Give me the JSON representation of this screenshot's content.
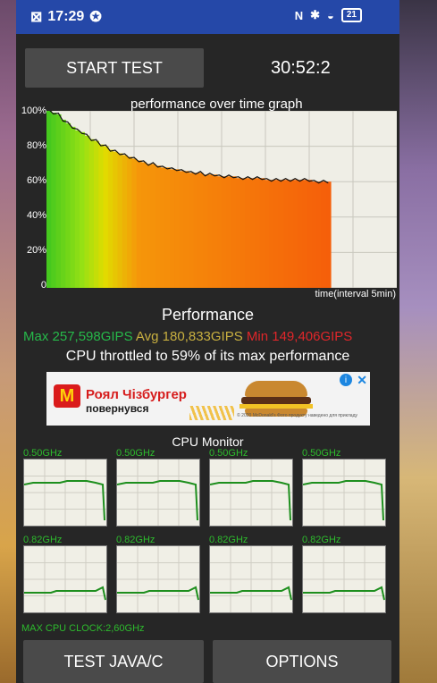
{
  "status_bar": {
    "time": "17:29",
    "battery": "21"
  },
  "buttons": {
    "start": "START TEST",
    "java": "TEST JAVA/C",
    "options": "OPTIONS"
  },
  "timer": "30:52:2",
  "graph": {
    "title": "performance over time graph",
    "x_label": "time(interval 5min)",
    "y_ticks": [
      "100%",
      "80%",
      "60%",
      "40%",
      "20%",
      "0"
    ]
  },
  "performance": {
    "title": "Performance",
    "max": "Max 257,598GIPS",
    "avg": "Avg 180,833GIPS",
    "min": "Min 149,406GIPS",
    "throttle": "CPU throttled to 59% of its max performance"
  },
  "ad": {
    "line1": "Роял Чізбургер",
    "line2": "повернувся",
    "fine_print": "© 2020 McDonald's  Фото продукту наведено для прикладу"
  },
  "cpu_monitor": {
    "title": "CPU Monitor",
    "cores": [
      {
        "freq": "0.50GHz"
      },
      {
        "freq": "0.50GHz"
      },
      {
        "freq": "0.50GHz"
      },
      {
        "freq": "0.50GHz"
      },
      {
        "freq": "0.82GHz"
      },
      {
        "freq": "0.82GHz"
      },
      {
        "freq": "0.82GHz"
      },
      {
        "freq": "0.82GHz"
      }
    ],
    "max_clock": "MAX CPU CLOCK:2,60GHz"
  },
  "colors": {
    "status_bar": "#2548a8",
    "button": "#4a4a4a",
    "max_green": "#26b94a",
    "avg_yellow": "#c9b040",
    "min_red": "#e0262a",
    "cpu_green": "#2dbb2d"
  },
  "chart_data": {
    "type": "area",
    "title": "performance over time graph",
    "xlabel": "time(interval 5min)",
    "ylabel": "",
    "ylim": [
      0,
      100
    ],
    "y_ticks": [
      "0",
      "20%",
      "40%",
      "60%",
      "80%",
      "100%"
    ],
    "series": [
      {
        "values": [
          100,
          99,
          98,
          95,
          93,
          91,
          89,
          88,
          86,
          84,
          83,
          81,
          80,
          78,
          77,
          76,
          75,
          74,
          73,
          72,
          71,
          70,
          70,
          69,
          68,
          68,
          67,
          67,
          66,
          66,
          65,
          65,
          65,
          64,
          64,
          64,
          63,
          63,
          63,
          63,
          62,
          62,
          62,
          62,
          62,
          62,
          61,
          61,
          61,
          61,
          61,
          61,
          61,
          61,
          61,
          61,
          60,
          60,
          60,
          60
        ]
      }
    ]
  }
}
